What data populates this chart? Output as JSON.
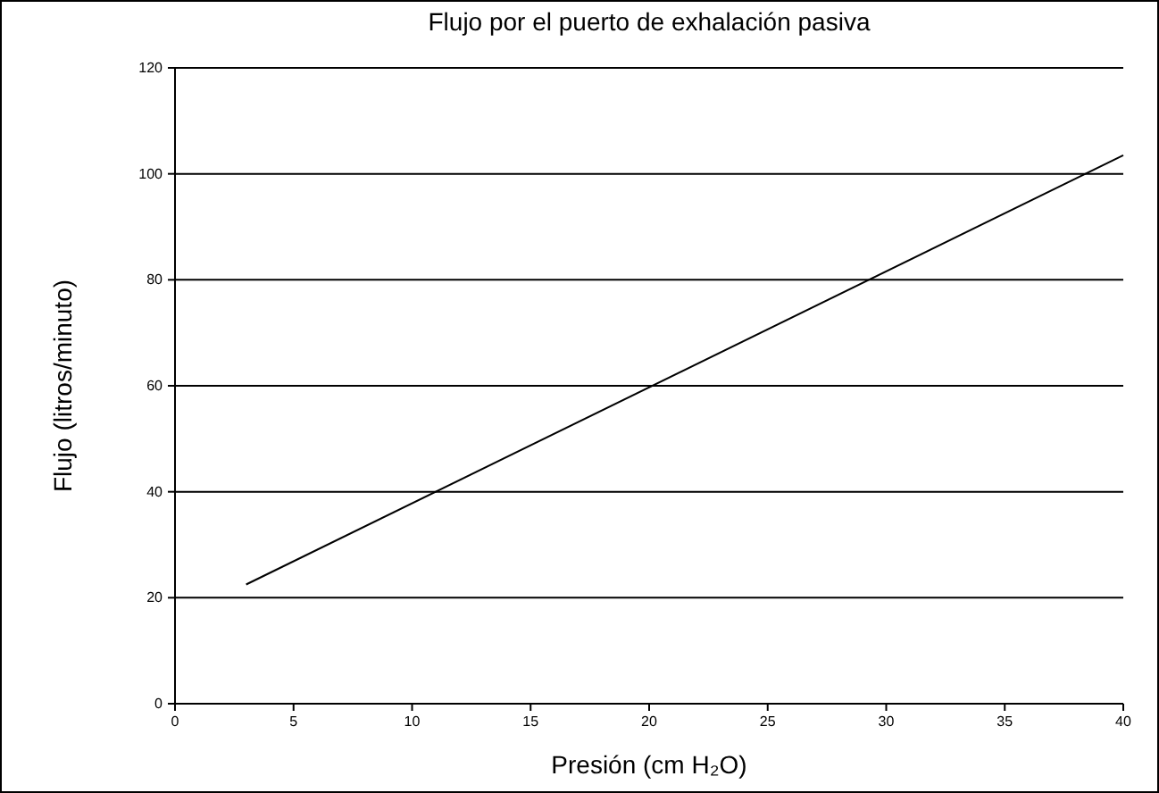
{
  "chart_data": {
    "type": "line",
    "title": "Flujo por el puerto de exhalación pasiva",
    "xlabel": "Presión (cm H₂O)",
    "ylabel": "Flujo (litros/minuto)",
    "x": [
      3,
      40
    ],
    "series": [
      {
        "color": "#000000",
        "values": [
          22.5,
          103.5
        ]
      }
    ],
    "xlim": [
      0,
      40
    ],
    "xticks": [
      0,
      5,
      10,
      15,
      20,
      25,
      30,
      35,
      40
    ],
    "ylim": [
      0,
      120
    ],
    "yticks": [
      0,
      20,
      40,
      60,
      80,
      100,
      120
    ],
    "grid": "y",
    "marker": "none",
    "line_style": "solid"
  }
}
